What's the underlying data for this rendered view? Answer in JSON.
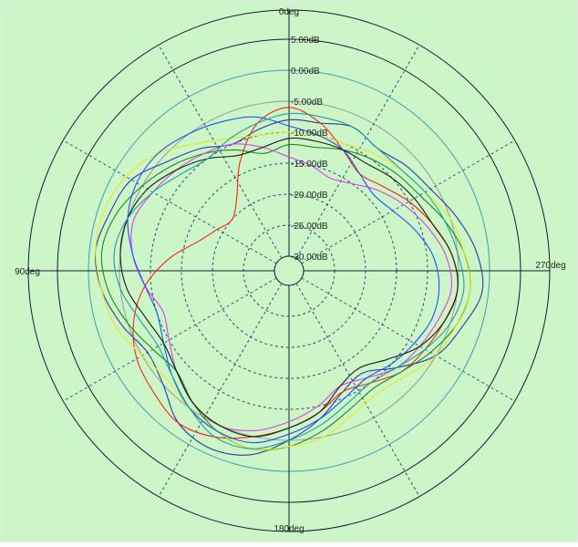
{
  "colors": {
    "background": "#ccf5c8",
    "border": "#e8e8e8",
    "axis": "#1a1a3a",
    "ring_db": "#3aa0b8",
    "ring_gray": "#9a9a9a",
    "grid_dash": "#2a4a7a"
  },
  "chart_data": {
    "type": "polar-line",
    "title": "",
    "angle_labels": [
      {
        "angle": 0,
        "text": "0deg"
      },
      {
        "angle": 90,
        "text": "90deg"
      },
      {
        "angle": 180,
        "text": "180deg"
      },
      {
        "angle": 270,
        "text": "270deg"
      }
    ],
    "radial_axis": {
      "min": -30,
      "max": 5,
      "unit": "dB",
      "tick_labels": [
        "5.00dB",
        "0.00dB",
        "-5.00dB",
        "-10.00dB",
        "-15.00dB",
        "-20.00dB",
        "-25.00dB",
        "-30.00dB"
      ],
      "tick_values": [
        5,
        0,
        -5,
        -10,
        -15,
        -20,
        -25,
        -30
      ]
    },
    "grid": {
      "spokes_every_deg": 30,
      "dashed_rings": true
    },
    "series": [
      {
        "color": "#2a3aa8",
        "values": [
          -8,
          -9,
          -10,
          -8,
          -6,
          -3,
          -2,
          -1,
          -2,
          -4,
          -6,
          -5,
          -2,
          -1,
          -2,
          -5,
          -8,
          -11,
          -12,
          -9,
          -5,
          -3,
          -1,
          -2,
          -4,
          -6,
          -7,
          -8,
          -7,
          -8
        ]
      },
      {
        "color": "#ff2020",
        "values": [
          -6,
          -8,
          -13,
          -18,
          -20,
          -19,
          -17,
          -13,
          -9,
          -6,
          -4,
          -3,
          -2,
          -3,
          -5,
          -7,
          -9,
          -11,
          -10,
          -8,
          -7,
          -6,
          -5,
          -6,
          -8,
          -10,
          -12,
          -13,
          -11,
          -8
        ]
      },
      {
        "color": "#1a8a1a",
        "values": [
          -12,
          -13,
          -11,
          -9,
          -7,
          -5,
          -3,
          -2,
          -3,
          -5,
          -7,
          -8,
          -6,
          -4,
          -3,
          -4,
          -6,
          -8,
          -9,
          -8,
          -6,
          -4,
          -3,
          -4,
          -6,
          -8,
          -9,
          -10,
          -11,
          -12
        ]
      },
      {
        "color": "#e8e81a",
        "values": [
          -10,
          -10,
          -9,
          -7,
          -4,
          -2,
          -1,
          -1,
          -2,
          -3,
          -5,
          -6,
          -5,
          -4,
          -3,
          -4,
          -5,
          -7,
          -8,
          -7,
          -5,
          -4,
          -3,
          -4,
          -5,
          -7,
          -8,
          -9,
          -10,
          -10
        ]
      },
      {
        "color": "#e040e0",
        "values": [
          -14,
          -12,
          -10,
          -9,
          -8,
          -7,
          -6,
          -7,
          -9,
          -11,
          -10,
          -8,
          -6,
          -5,
          -6,
          -8,
          -10,
          -12,
          -11,
          -9,
          -8,
          -7,
          -6,
          -7,
          -9,
          -11,
          -13,
          -15,
          -16,
          -15
        ]
      },
      {
        "color": "#2050ff",
        "values": [
          -9,
          -7,
          -6,
          -5,
          -4,
          -4,
          -5,
          -7,
          -9,
          -10,
          -9,
          -7,
          -5,
          -4,
          -4,
          -6,
          -8,
          -10,
          -11,
          -10,
          -9,
          -8,
          -8,
          -9,
          -11,
          -13,
          -14,
          -13,
          -11,
          -10
        ]
      },
      {
        "color": "#102010",
        "values": [
          -11,
          -12,
          -12,
          -10,
          -8,
          -6,
          -5,
          -5,
          -6,
          -8,
          -9,
          -8,
          -6,
          -5,
          -5,
          -7,
          -9,
          -12,
          -13,
          -11,
          -8,
          -6,
          -5,
          -6,
          -8,
          -9,
          -10,
          -11,
          -11,
          -11
        ]
      },
      {
        "color": "#20a0a0",
        "values": [
          -7,
          -8,
          -9,
          -10,
          -9,
          -7,
          -5,
          -4,
          -5,
          -7,
          -8,
          -7,
          -5,
          -3,
          -3,
          -5,
          -7,
          -9,
          -10,
          -9,
          -7,
          -5,
          -4,
          -5,
          -6,
          -7,
          -8,
          -8,
          -7,
          -7
        ]
      }
    ]
  }
}
